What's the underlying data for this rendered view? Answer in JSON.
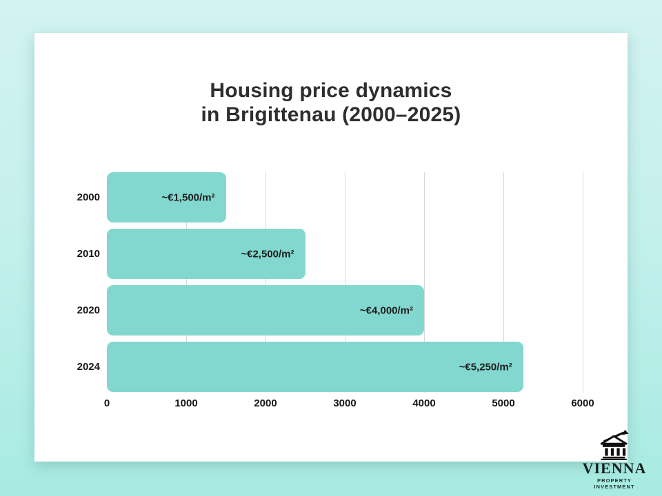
{
  "title": {
    "line1": "Housing price dynamics",
    "line2": "in Brigittenau (2000–2025)"
  },
  "chart_data": {
    "type": "bar",
    "orientation": "horizontal",
    "title": "Housing price dynamics in Brigittenau (2000–2025)",
    "categories": [
      "2000",
      "2010",
      "2020",
      "2024"
    ],
    "values": [
      1500,
      2500,
      4000,
      5250
    ],
    "value_labels": [
      "~€1,500/m²",
      "~€2,500/m²",
      "~€4,000/m²",
      "~€5,250/m²"
    ],
    "x_ticks": [
      0,
      1000,
      2000,
      3000,
      4000,
      5000,
      6000
    ],
    "xlim": [
      0,
      6000
    ],
    "grid": "vertical-gridlines-at-each-1000",
    "legend": "none",
    "xlabel": "",
    "ylabel": ""
  },
  "logo": {
    "name": "VIENNA",
    "subtitle": "PROPERTY INVESTMENT",
    "icon": "classical-building-growth-arrow-icon"
  },
  "colors": {
    "background_top": "#d2f3f1",
    "background_bottom": "#a7ebe1",
    "card": "#ffffff",
    "bar": "#82d8ce",
    "gridline": "#d8d8d8",
    "title_text": "#2e2e2e",
    "label_text": "#161616",
    "logo_text": "#15211f"
  }
}
